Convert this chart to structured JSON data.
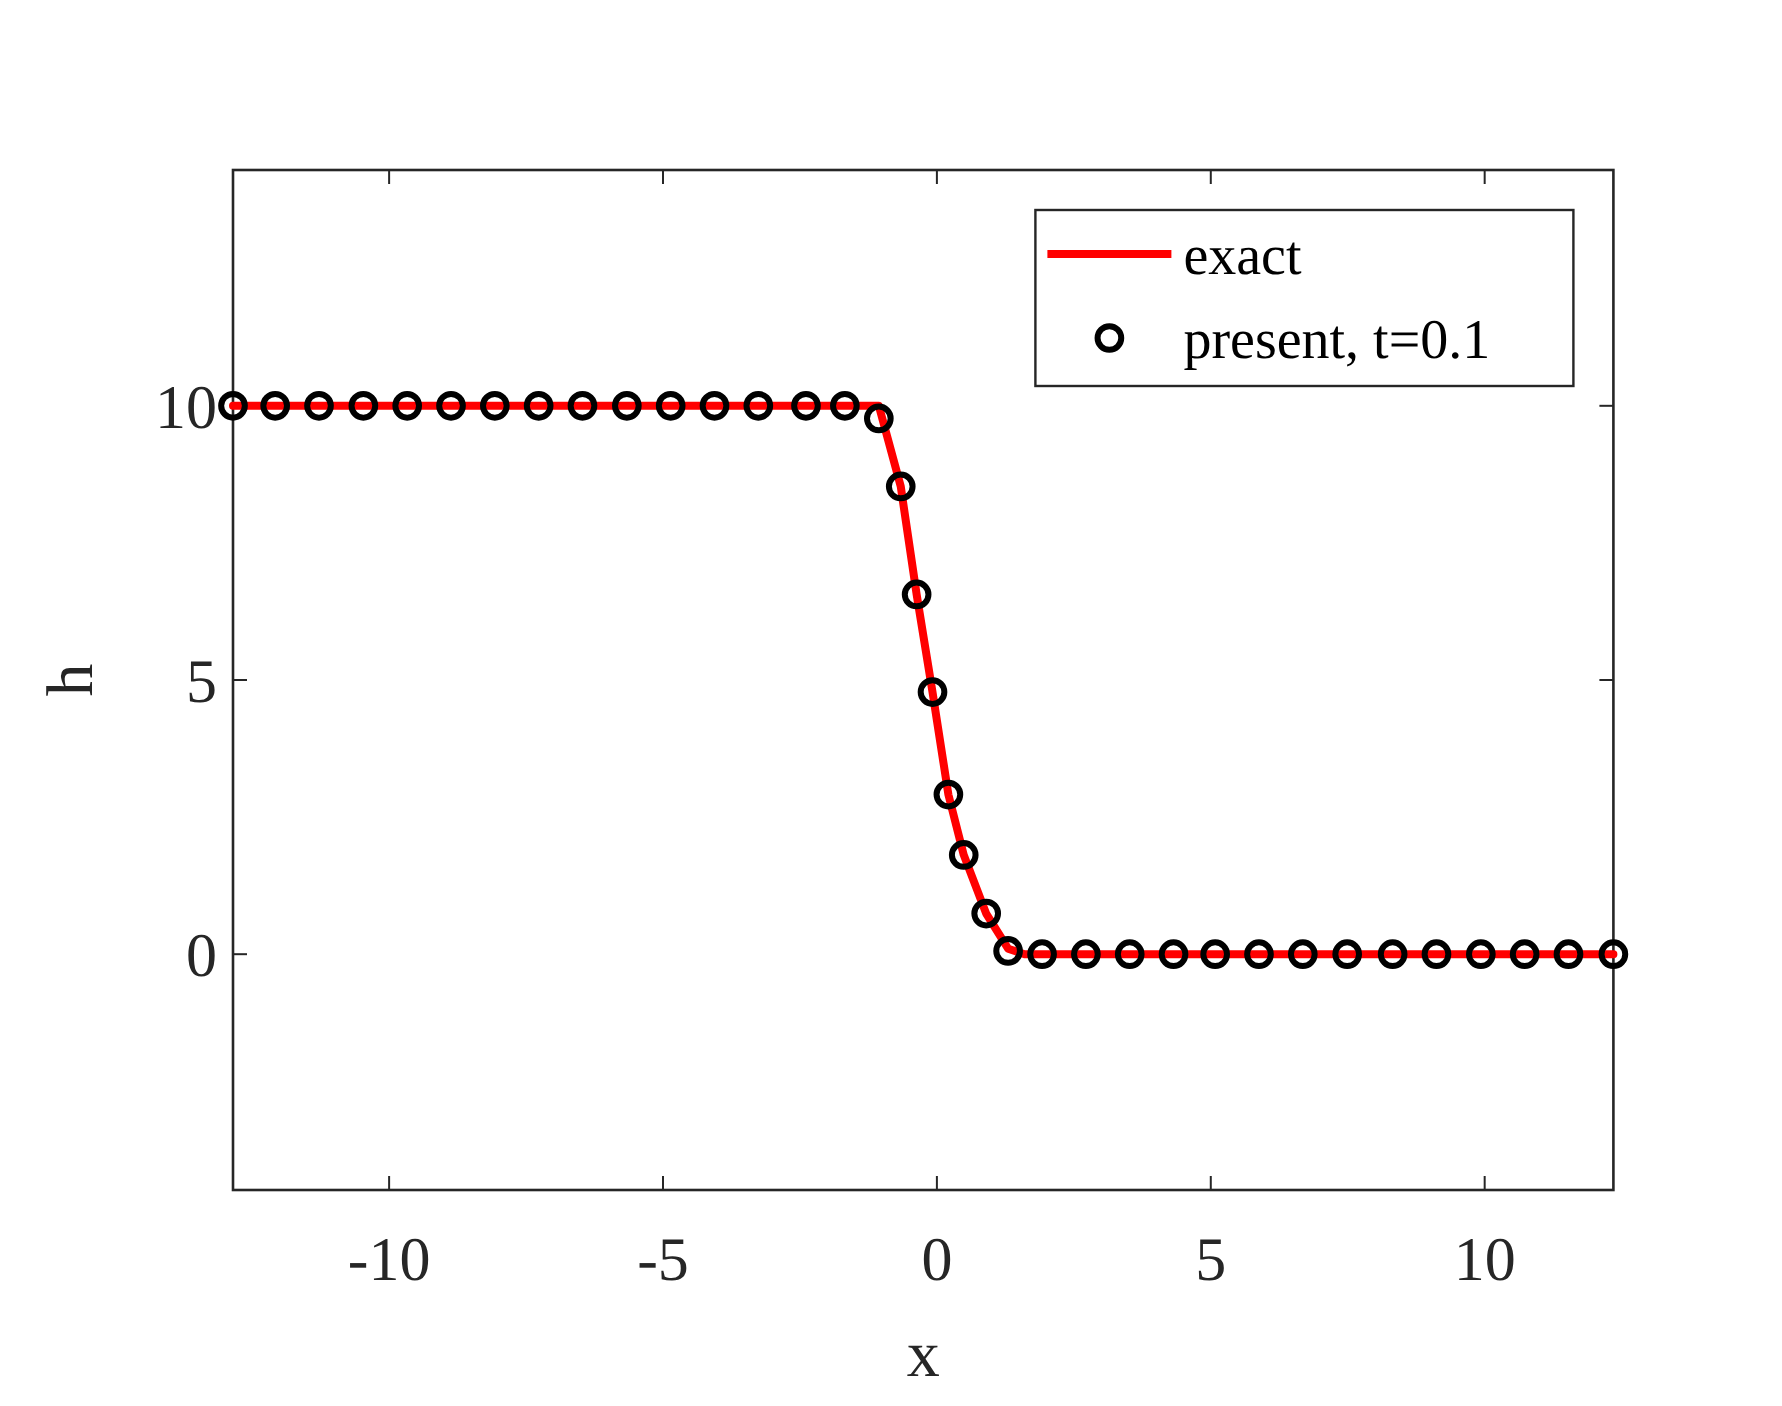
{
  "chart_data": {
    "type": "line",
    "xlabel": "x",
    "ylabel": "h",
    "xlim": [
      -12.85,
      12.35
    ],
    "ylim": [
      -4.3,
      14.3
    ],
    "xticks": [
      -10,
      -5,
      0,
      5,
      10
    ],
    "yticks": [
      0,
      5,
      10
    ],
    "grid": false,
    "legend": "top right",
    "series": [
      {
        "name": "exact",
        "color": "#ff0000",
        "marker": "none",
        "line_style": "solid",
        "x": [
          -12.85,
          -1.06,
          -0.66,
          -0.37,
          -0.08,
          0.21,
          0.49,
          0.9,
          1.3,
          1.6,
          12.35
        ],
        "values": [
          10,
          10,
          8.53,
          6.56,
          4.78,
          2.91,
          1.81,
          0.74,
          0.1,
          0,
          0
        ]
      },
      {
        "name": "present, t=0.1",
        "type": "scatter",
        "color": "#000000",
        "marker": "circle",
        "x": [
          -12.85,
          -12.08,
          -11.28,
          -10.47,
          -9.67,
          -8.87,
          -8.07,
          -7.27,
          -6.47,
          -5.66,
          -4.86,
          -4.06,
          -3.26,
          -2.39,
          -1.68,
          -1.06,
          -0.66,
          -0.37,
          -0.08,
          0.21,
          0.49,
          0.9,
          1.3,
          1.92,
          2.72,
          3.52,
          4.32,
          5.08,
          5.88,
          6.68,
          7.49,
          8.32,
          9.12,
          9.93,
          10.73,
          11.53,
          12.35
        ],
        "values": [
          10,
          10,
          10,
          10,
          10,
          10,
          10,
          10,
          10,
          10,
          10,
          10,
          10,
          10,
          10,
          9.77,
          8.53,
          6.56,
          4.78,
          2.91,
          1.81,
          0.74,
          0.06,
          0,
          0,
          0,
          0,
          0,
          0,
          0,
          0,
          0,
          0,
          0,
          0,
          0,
          0
        ]
      }
    ]
  }
}
